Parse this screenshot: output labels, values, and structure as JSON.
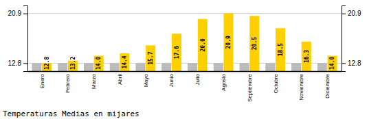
{
  "chart_data": {
    "type": "bar",
    "title": "Temperaturas Medias en mijares",
    "categories": [
      "Enero",
      "Febrero",
      "Marzo",
      "Abril",
      "Mayo",
      "Junio",
      "Julio",
      "Agosto",
      "Septiembre",
      "Octubre",
      "Noviembre",
      "Diciembre"
    ],
    "series": [
      {
        "color": "#BBBBBB",
        "values": [
          12.8,
          12.8,
          12.8,
          12.8,
          12.8,
          12.8,
          12.8,
          12.8,
          12.8,
          12.8,
          12.8,
          12.8
        ]
      },
      {
        "color": "#FFD000",
        "values": [
          12.8,
          13.2,
          14.0,
          14.4,
          15.7,
          17.6,
          20.0,
          20.9,
          20.5,
          18.5,
          16.3,
          14.0
        ],
        "value_labels": [
          "12.8",
          "13.2",
          "14.0",
          "14.4",
          "15.7",
          "17.6",
          "20.0",
          "20.9",
          "20.5",
          "18.5",
          "16.3",
          "14.0"
        ],
        "data_labels": true
      }
    ],
    "ylim": [
      11.5,
      22.2
    ],
    "yticks": [
      12.8,
      20.9
    ],
    "y2lim": [
      11.5,
      22.2
    ],
    "y2ticks": [
      12.8,
      20.9
    ],
    "grid": true
  }
}
